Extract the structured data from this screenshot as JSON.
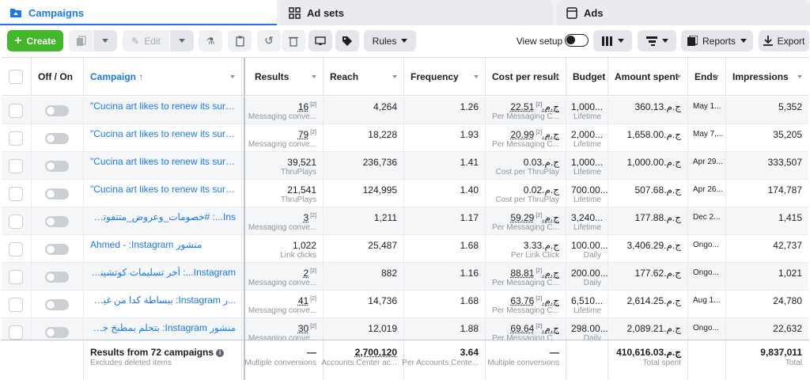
{
  "tabs": [
    {
      "label": "Campaigns",
      "icon": "folder-icon"
    },
    {
      "label": "Ad sets",
      "icon": "grid-icon"
    },
    {
      "label": "Ads",
      "icon": "ad-page-icon"
    }
  ],
  "toolbar": {
    "create_label": "Create",
    "edit_label": "Edit",
    "rules_label": "Rules",
    "view_setup_label": "View setup",
    "reports_label": "Reports",
    "export_label": "Export"
  },
  "columns": {
    "off_on": "Off / On",
    "campaign": "Campaign ↑",
    "results": "Results",
    "reach": "Reach",
    "frequency": "Frequency",
    "cost_per_result": "Cost per result",
    "budget": "Budget",
    "amount_spent": "Amount spent",
    "ends": "Ends",
    "impressions": "Impressions"
  },
  "rows": [
    {
      "campaign": "\"Cucina art likes to renew its surprise...",
      "rtl": false,
      "results": "16",
      "results_sub": "Messaging conve...",
      "reach": "4,264",
      "frequency": "1.26",
      "cpr": "22.51ج.م.‏",
      "cpr_sub": "Per Messaging C...",
      "budget": "1,000...",
      "budget_sub": "Lifetime",
      "spent": "360.13ج.م.‏",
      "ends": "May 1...",
      "impressions": "5,352",
      "dotted": true
    },
    {
      "campaign": "\"Cucina art likes to renew its surprise...",
      "rtl": false,
      "results": "79",
      "results_sub": "Messaging conve...",
      "reach": "18,228",
      "frequency": "1.93",
      "cpr": "20.99ج.م.‏",
      "cpr_sub": "Per Messaging C...",
      "budget": "2,000...",
      "budget_sub": "Lifetime",
      "spent": "1,658.00ج.م.‏",
      "ends": "May 7,...",
      "impressions": "35,205",
      "dotted": true
    },
    {
      "campaign": "\"Cucina art likes to renew its surprise...",
      "rtl": false,
      "results": "39,521",
      "results_sub": "ThruPlays",
      "reach": "236,736",
      "frequency": "1.41",
      "cpr": "0.03ج.م.‏",
      "cpr_sub": "Cost per ThruPlay",
      "budget": "1,000...",
      "budget_sub": "Lifetime",
      "spent": "1,000.00ج.م.‏",
      "ends": "Apr 29...",
      "impressions": "333,507",
      "dotted": false
    },
    {
      "campaign": "\"Cucina art likes to renew its surprise...",
      "rtl": false,
      "results": "21,541",
      "results_sub": "ThruPlays",
      "reach": "124,995",
      "frequency": "1.40",
      "cpr": "0.02ج.م.‏",
      "cpr_sub": "Cost per ThruPlay",
      "budget": "700.00...",
      "budget_sub": "Lifetime",
      "spent": "507.68ج.م.‏",
      "ends": "Apr 26...",
      "impressions": "174,787",
      "dotted": false
    },
    {
      "campaign": "Ins...: #خصومات_وعروض_متتفوتش مع كوتشينا",
      "rtl": true,
      "results": "3",
      "results_sub": "Messaging conve...",
      "reach": "1,211",
      "frequency": "1.17",
      "cpr": "59.29ج.م.‏",
      "cpr_sub": "Per Messaging C...",
      "budget": "3,240...",
      "budget_sub": "Lifetime",
      "spent": "177.88ج.م.‏",
      "ends": "Dec 2...",
      "impressions": "1,415",
      "dotted": true
    },
    {
      "campaign": "Ahmed - :Instagram منشور",
      "rtl": false,
      "results": "1,022",
      "results_sub": "Link clicks",
      "reach": "25,487",
      "frequency": "1.68",
      "cpr": "3.33ج.م.‏",
      "cpr_sub": "Per Link Click",
      "budget": "100.00...",
      "budget_sub": "Daily",
      "spent": "3,406.29ج.م.‏",
      "ends": "Ongo...",
      "impressions": "42,737",
      "dotted": false
    },
    {
      "campaign": "Instagram...: أخر تسليمات كوتشينا آرت مطبخ مات",
      "rtl": true,
      "results": "2",
      "results_sub": "Messaging conve...",
      "reach": "882",
      "frequency": "1.16",
      "cpr": "88.81ج.م.‏",
      "cpr_sub": "Per Messaging C...",
      "budget": "200.00...",
      "budget_sub": "Daily",
      "spent": "177.62ج.م.‏",
      "ends": "Ongo...",
      "impressions": "1,021",
      "dotted": true
    },
    {
      "campaign": "...ر Instagram: ببساطة كدا من غير تجميل كلام",
      "rtl": true,
      "results": "41",
      "results_sub": "Messaging conve...",
      "reach": "14,736",
      "frequency": "1.68",
      "cpr": "63.76ج.م.‏",
      "cpr_sub": "Per Messaging C...",
      "budget": "6,510...",
      "budget_sub": "Lifetime",
      "spent": "2,614.25ج.م.‏",
      "ends": "Aug 1...",
      "impressions": "24,780",
      "dotted": true
    },
    {
      "campaign": "منشور Instagram: بتحلم بمطبخ جديد في السنة...",
      "rtl": true,
      "results": "30",
      "results_sub": "Messaging conve...",
      "reach": "12,019",
      "frequency": "1.88",
      "cpr": "69.64ج.م.‏",
      "cpr_sub": "Per Messaging C...",
      "budget": "298.00...",
      "budget_sub": "Daily",
      "spent": "2,089.21ج.م.‏",
      "ends": "Ongo...",
      "impressions": "22,632",
      "dotted": true
    }
  ],
  "footer": {
    "title": "Results from 72 campaigns",
    "subtitle": "Excludes deleted items",
    "results": "—",
    "results_sub": "Multiple conversions",
    "reach": "2,700,120",
    "reach_sub": "Accounts Center ac...",
    "frequency": "3.64",
    "frequency_sub": "Per Accounts Cente...",
    "cpr": "—",
    "cpr_sub": "Multiple conversions",
    "spent": "410,616.03ج.م.‏",
    "spent_sub": "Total spent",
    "impressions": "9,837,011",
    "impressions_sub": "Total"
  },
  "colors": {
    "accent": "#1877f2",
    "create": "#42b72a"
  }
}
